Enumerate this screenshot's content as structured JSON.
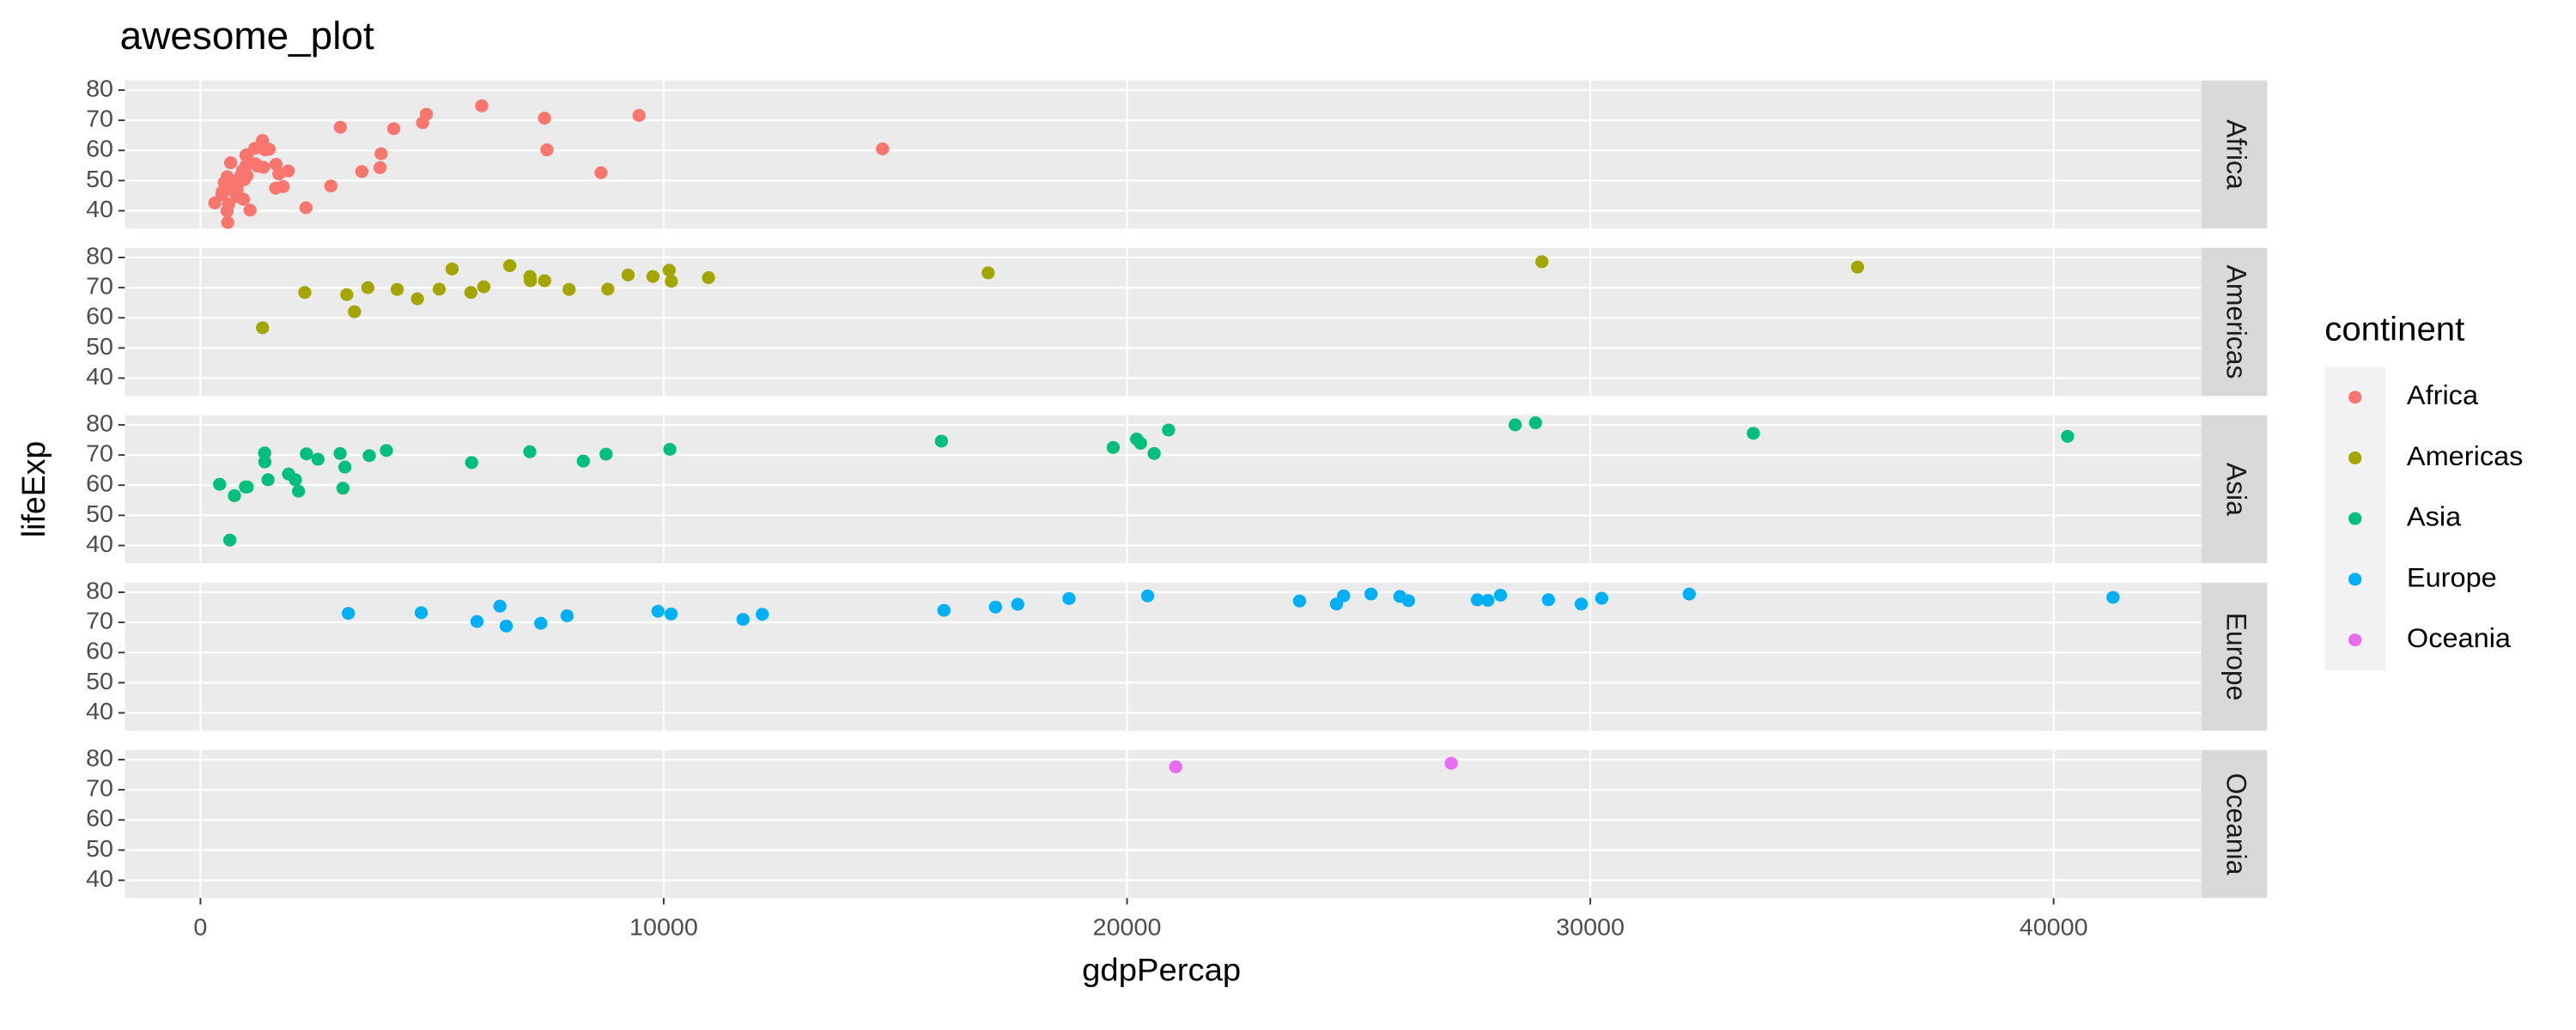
{
  "chart_data": {
    "type": "scatter",
    "title": "awesome_plot",
    "x_label": "gdpPercap",
    "y_label": "lifeExp",
    "legend_title": "continent",
    "legend_position": "right",
    "xlim": [
      -1631,
      43190
    ],
    "xticks": [
      0,
      10000,
      20000,
      30000,
      40000
    ],
    "ylim": [
      34.1,
      83.2
    ],
    "yticks": [
      40,
      50,
      60,
      70,
      80
    ],
    "grid": true,
    "series": [
      {
        "name": "Africa",
        "color": "#F8766D",
        "x": [
          4797,
          2277,
          1233,
          8647,
          946,
          463,
          1694,
          741,
          1005,
          1174,
          312,
          3484,
          1786,
          1895,
          4173,
          2815,
          913,
          516,
          14723,
          653,
          1005,
          869,
          796,
          1360,
          1187,
          610,
          9467,
          986,
          692,
          790,
          1483,
          7426,
          3020,
          472,
          3900,
          580,
          1625,
          6072,
          590,
          1339,
          1392,
          575,
          930,
          7479,
          1632,
          3877,
          789,
          982,
          4876,
          817,
          1071,
          792
        ],
        "values": [
          69.2,
          41.0,
          54.8,
          52.6,
          50.3,
          45.3,
          52.2,
          46.1,
          51.6,
          60.7,
          42.6,
          53.0,
          48.0,
          53.2,
          67.2,
          48.2,
          53.4,
          49.4,
          60.5,
          55.9,
          58.6,
          51.5,
          44.9,
          54.4,
          55.6,
          42.2,
          71.6,
          55.0,
          47.5,
          49.9,
          60.4,
          70.7,
          67.7,
          46.3,
          58.9,
          51.3,
          47.5,
          74.8,
          36.1,
          63.3,
          60.2,
          39.9,
          43.8,
          60.2,
          55.4,
          54.3,
          48.5,
          58.4,
          72.0,
          44.6,
          40.2,
          46.8
        ]
      },
      {
        "name": "Americas",
        "color": "#A3A500",
        "x": [
          10967,
          3326,
          7958,
          28955,
          10118,
          6117,
          6677,
          5431,
          3614,
          7429,
          5154,
          4684,
          1341,
          3160,
          7122,
          9767,
          2253,
          7114,
          4247,
          5838,
          17003,
          8793,
          35767,
          9231,
          10165
        ],
        "values": [
          73.3,
          62.0,
          69.4,
          78.6,
          75.8,
          70.3,
          77.3,
          76.2,
          70.0,
          72.3,
          69.5,
          66.3,
          56.7,
          67.7,
          72.3,
          73.7,
          68.4,
          73.7,
          69.4,
          68.4,
          74.9,
          69.5,
          76.8,
          74.2,
          72.1
        ]
      },
      {
        "name": "Asia",
        "color": "#00BF7D",
        "x": [
          635,
          20292,
          973,
          734,
          2289,
          28378,
          1459,
          3119,
          8264,
          3076,
          20897,
          28817,
          3645,
          1391,
          15994,
          40301,
          8755,
          10132,
          1903,
          415,
          1010,
          19702,
          2049,
          2537,
          20586,
          33519,
          3015,
          4014,
          20207,
          5853,
          1386,
          7110,
          2117
        ],
        "values": [
          41.8,
          73.9,
          59.4,
          56.5,
          70.4,
          80.0,
          61.8,
          66.0,
          68.0,
          59.0,
          78.3,
          80.7,
          69.8,
          67.7,
          74.6,
          76.2,
          70.3,
          71.9,
          63.7,
          60.3,
          59.4,
          72.5,
          61.8,
          68.6,
          70.5,
          77.2,
          70.5,
          71.5,
          75.3,
          67.5,
          70.7,
          71.1,
          58.0
        ]
      },
      {
        "name": "Europe",
        "color": "#00B0F6",
        "x": [
          3193,
          29096,
          27561,
          4766,
          5970,
          9876,
          16049,
          29804,
          23724,
          25890,
          27789,
          18748,
          11712,
          28061,
          24522,
          24675,
          6465,
          30246,
          41283,
          10159,
          17641,
          7347,
          7914,
          12127,
          17161,
          20445,
          25267,
          32135,
          6601,
          26075
        ],
        "values": [
          73.0,
          77.5,
          77.5,
          73.2,
          70.3,
          73.7,
          74.0,
          76.1,
          77.1,
          78.6,
          77.3,
          77.9,
          71.0,
          79.0,
          76.1,
          78.8,
          75.4,
          78.0,
          78.3,
          72.8,
          76.0,
          69.7,
          72.2,
          72.7,
          75.1,
          78.8,
          79.4,
          79.4,
          68.8,
          77.2
        ]
      },
      {
        "name": "Oceania",
        "color": "#E76BF3",
        "x": [
          26998,
          21050
        ],
        "values": [
          78.8,
          77.6
        ]
      }
    ]
  }
}
